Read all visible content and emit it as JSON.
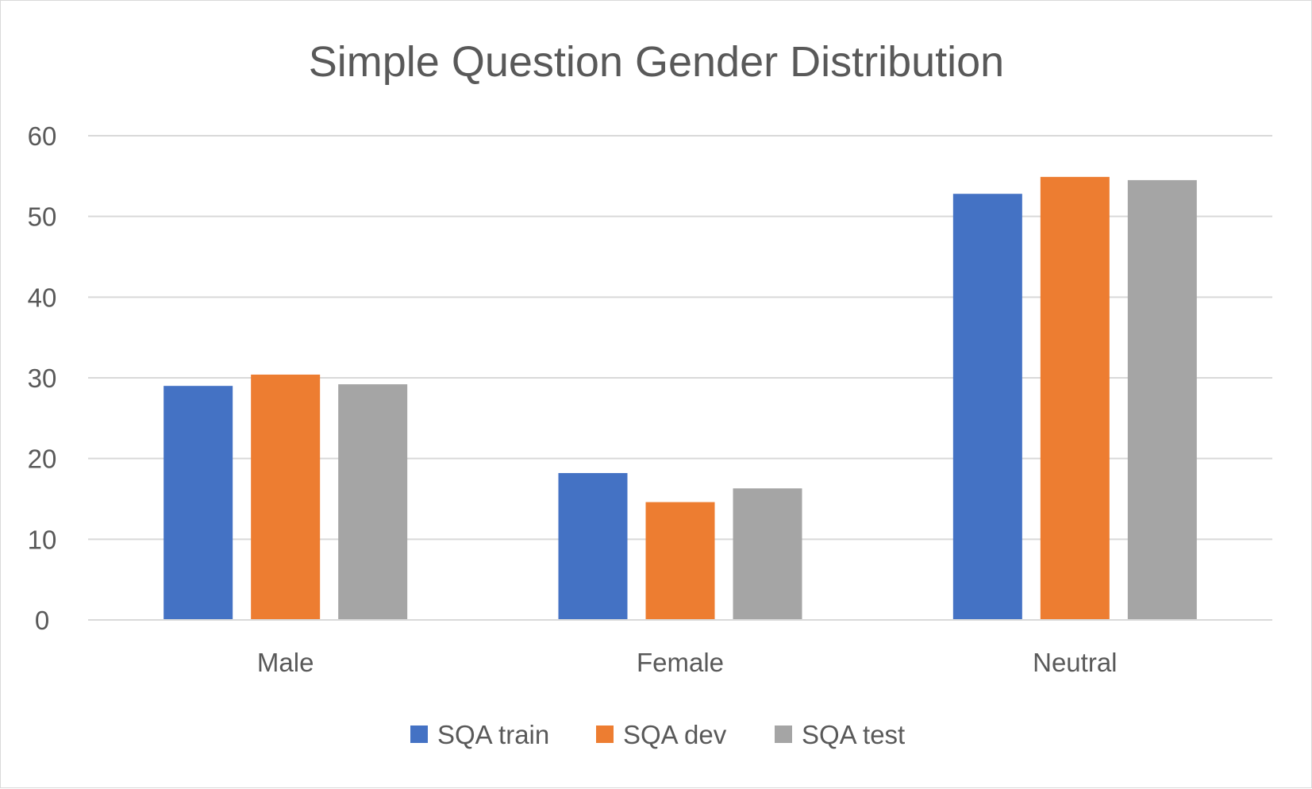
{
  "chart_data": {
    "type": "bar",
    "title": "Simple Question Gender Distribution",
    "xlabel": "",
    "ylabel": "",
    "categories": [
      "Male",
      "Female",
      "Neutral"
    ],
    "series": [
      {
        "name": "SQA train",
        "values": [
          29.0,
          18.2,
          52.8
        ],
        "color": "#4472c4"
      },
      {
        "name": "SQA dev",
        "values": [
          30.4,
          14.6,
          54.9
        ],
        "color": "#ed7d31"
      },
      {
        "name": "SQA test",
        "values": [
          29.2,
          16.3,
          54.5
        ],
        "color": "#a5a5a5"
      }
    ],
    "ylim": [
      0,
      60
    ],
    "yticks": [
      0,
      10,
      20,
      30,
      40,
      50,
      60
    ],
    "grid": true,
    "legend_position": "bottom"
  }
}
